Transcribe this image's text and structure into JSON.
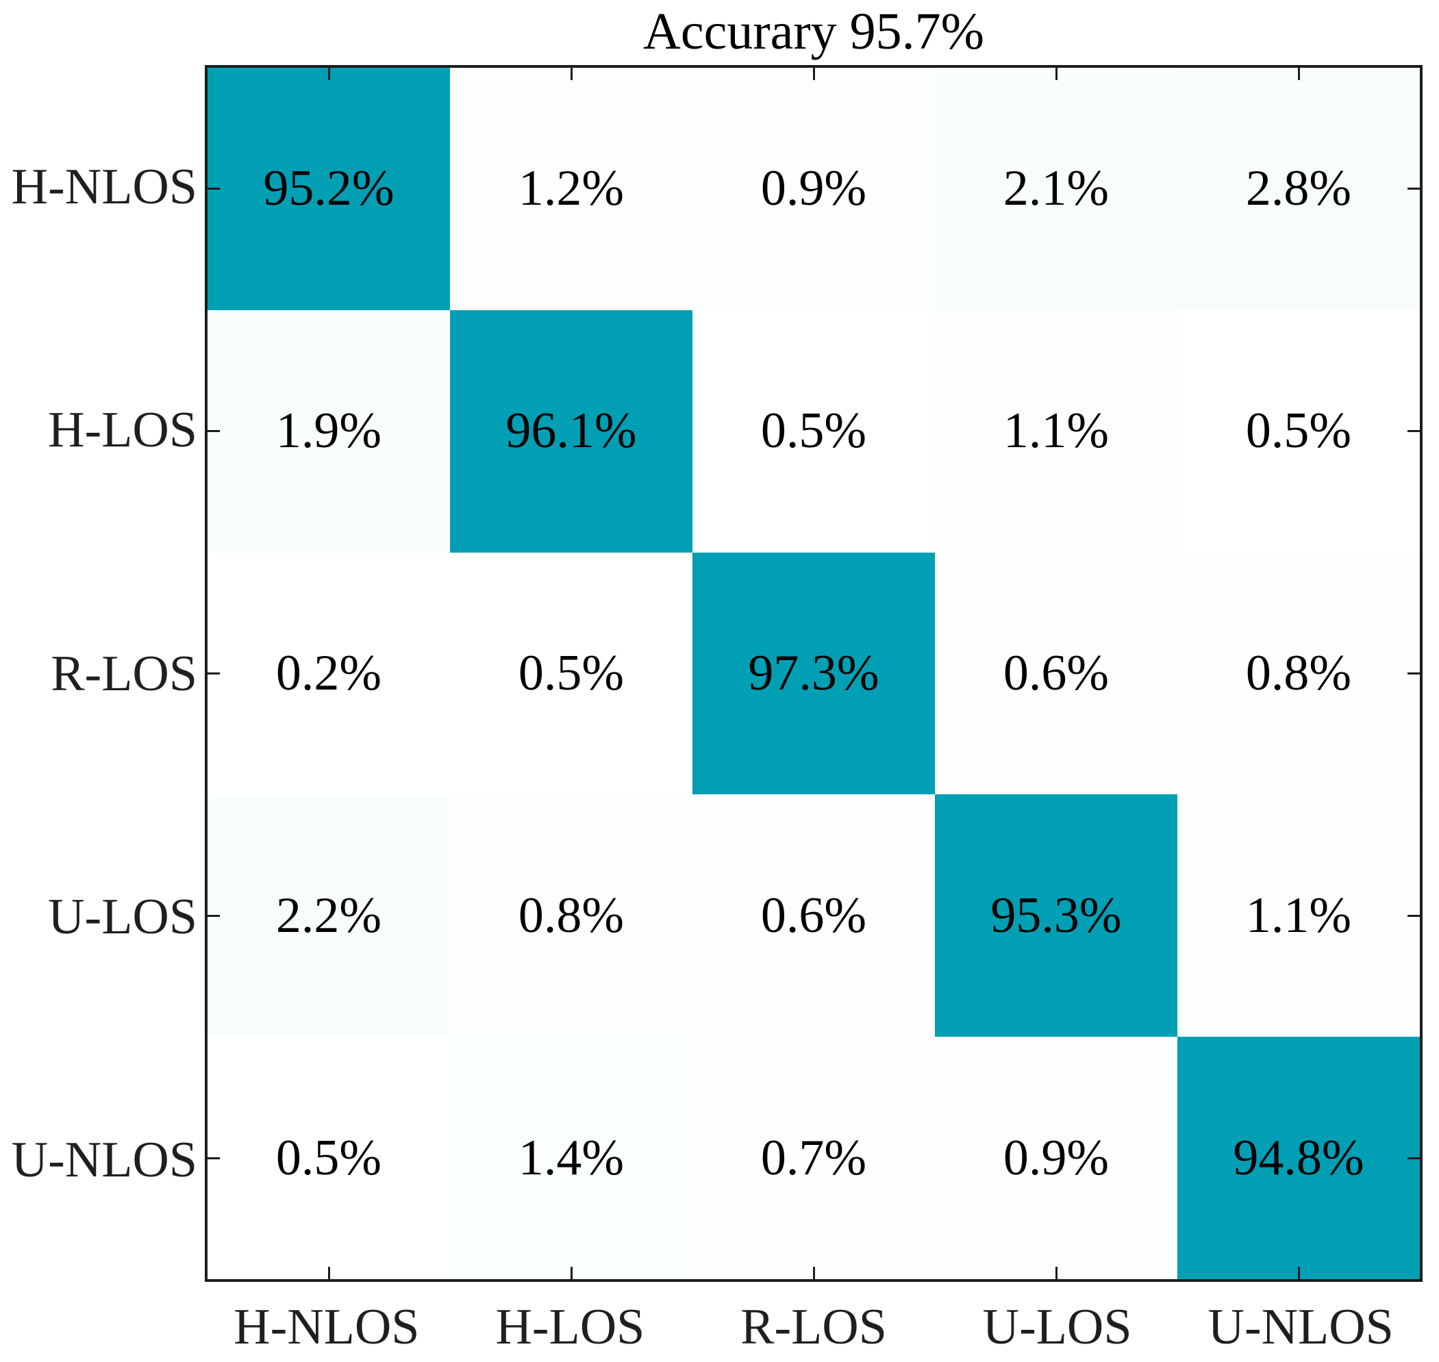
{
  "chart_data": {
    "type": "heatmap",
    "subtype": "confusion-matrix",
    "title": "Accurary 95.7%",
    "overall_accuracy_percent": 95.7,
    "row_labels": [
      "H-NLOS",
      "H-LOS",
      "R-LOS",
      "U-LOS",
      "U-NLOS"
    ],
    "col_labels": [
      "H-NLOS",
      "H-LOS",
      "R-LOS",
      "U-LOS",
      "U-NLOS"
    ],
    "values_percent": [
      [
        95.2,
        1.2,
        0.9,
        2.1,
        2.8
      ],
      [
        1.9,
        96.1,
        0.5,
        1.1,
        0.5
      ],
      [
        0.2,
        0.5,
        97.3,
        0.6,
        0.8
      ],
      [
        2.2,
        0.8,
        0.6,
        95.3,
        1.1
      ],
      [
        0.5,
        1.4,
        0.7,
        0.9,
        94.8
      ]
    ],
    "cell_labels": [
      [
        "95.2%",
        "1.2%",
        "0.9%",
        "2.1%",
        "2.8%"
      ],
      [
        "1.9%",
        "96.1%",
        "0.5%",
        "1.1%",
        "0.5%"
      ],
      [
        "0.2%",
        "0.5%",
        "97.3%",
        "0.6%",
        "0.8%"
      ],
      [
        "2.2%",
        "0.8%",
        "0.6%",
        "95.3%",
        "1.1%"
      ],
      [
        "0.5%",
        "1.4%",
        "0.7%",
        "0.9%",
        "94.8%"
      ]
    ],
    "layout": {
      "grid": "off",
      "legend": "none",
      "ticks": "inward-all-four-sides",
      "diagonal_highlighted": true
    },
    "colors": {
      "diagonal_fill": "#009FB4",
      "low_value_fill_base": "#ffffff",
      "cell_text": "#000000",
      "axis_text": "#1f1f1f",
      "axis_border": "#1c1c1c",
      "background": "#ffffff"
    }
  }
}
